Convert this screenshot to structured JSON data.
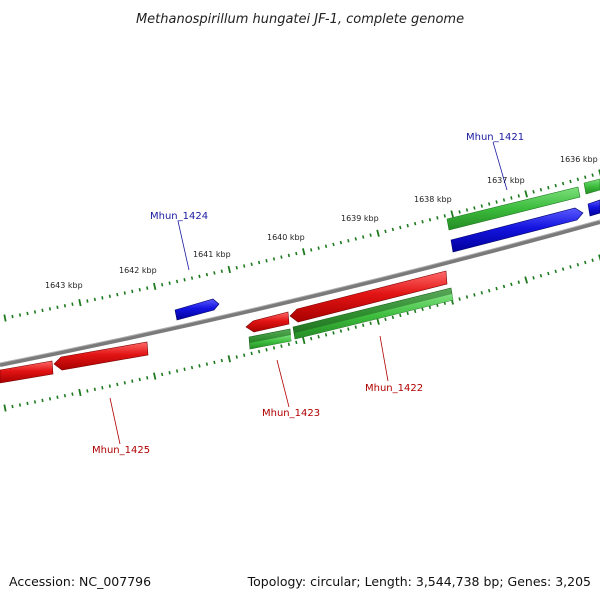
{
  "title": "Methanospirillum hungatei JF-1, complete genome",
  "accession": "Accession: NC_007796",
  "summary": "Topology: circular; Length: 3,544,738 bp; Genes: 3,205",
  "kbp_labels": [
    "1636 kbp",
    "1637 kbp",
    "1638 kbp",
    "1639 kbp",
    "1640 kbp",
    "1641 kbp",
    "1642 kbp",
    "1643 kbp"
  ],
  "gene_labels": [
    {
      "text": "Mhun_1421",
      "color": "#1a1aa0"
    },
    {
      "text": "Mhun_1424",
      "color": "#1a1aa0"
    },
    {
      "text": "Mhun_1422",
      "color": "#b00000"
    },
    {
      "text": "Mhun_1423",
      "color": "#b00000"
    },
    {
      "text": "Mhun_1425",
      "color": "#b00000"
    }
  ],
  "colors": {
    "backbone": "#808080",
    "tick": "#1e7a1e",
    "forward_cds": "#d81010",
    "reverse_cds": "#1414d8",
    "gene": "#3cbc3c",
    "gene_dark": "#2f8f2f"
  }
}
